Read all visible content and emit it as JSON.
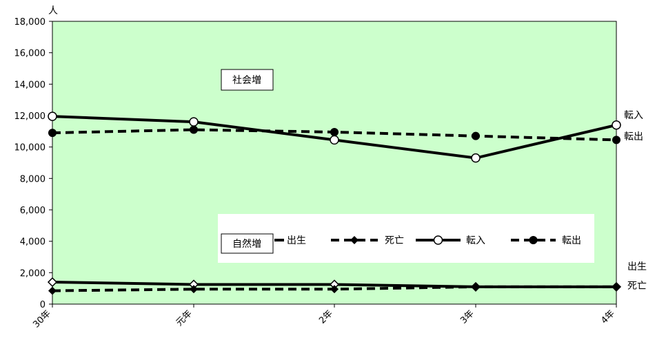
{
  "chart_data": {
    "type": "line",
    "ylabel": "人",
    "ylim": [
      0,
      18000
    ],
    "yticks": [
      0,
      2000,
      4000,
      6000,
      8000,
      10000,
      12000,
      14000,
      16000,
      18000
    ],
    "ytick_labels": [
      "0",
      "2,000",
      "4,000",
      "6,000",
      "8,000",
      "10,000",
      "12,000",
      "14,000",
      "16,000",
      "18,000"
    ],
    "categories": [
      "30年",
      "元年",
      "2年",
      "3年",
      "4年"
    ],
    "series": [
      {
        "name": "出生",
        "style": "solid",
        "marker": "diamond-open",
        "values": [
          1400,
          1250,
          1250,
          1100,
          1100
        ]
      },
      {
        "name": "死亡",
        "style": "dashed",
        "marker": "diamond-filled",
        "values": [
          850,
          950,
          950,
          1100,
          1100
        ]
      },
      {
        "name": "転入",
        "style": "solid",
        "marker": "circle-open",
        "values": [
          11950,
          11600,
          10450,
          9300,
          11400
        ]
      },
      {
        "name": "転出",
        "style": "dashed",
        "marker": "circle-filled",
        "values": [
          10900,
          11100,
          10950,
          10700,
          10450
        ]
      }
    ],
    "annotations": {
      "social": "社会増",
      "natural": "自然増"
    },
    "plot_background": "#ccffcc",
    "legend_position": "lower-middle"
  }
}
